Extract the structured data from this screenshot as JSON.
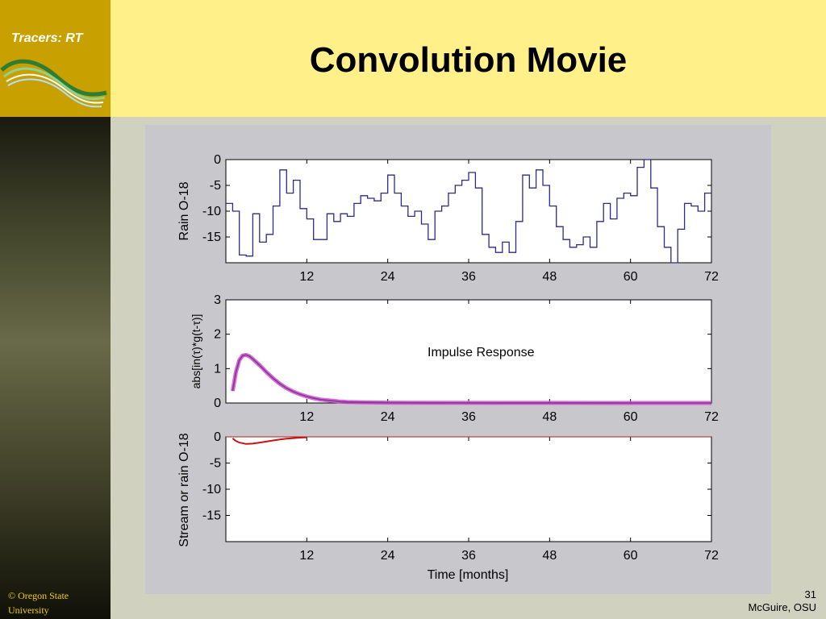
{
  "slide": {
    "course_label": "Tracers: RT",
    "title": "Convolution Movie",
    "footer_left": "© Oregon State University",
    "slide_number": "31",
    "author": "McGuire, OSU"
  },
  "colors": {
    "rain_line": "#2b2b8a",
    "impulse_highlight": "#e040e0",
    "impulse_line": "#6a4a7a",
    "stream_line": "#cc1111",
    "stream_dark": "#6a5a5a",
    "stream_zero_line": "#b02020"
  },
  "chart_data": [
    {
      "type": "line",
      "ylabel": "Rain O-18",
      "xlim": [
        0,
        72
      ],
      "ylim": [
        -20,
        0
      ],
      "xticks": [
        12,
        24,
        36,
        48,
        60,
        72
      ],
      "yticks": [
        0,
        -5,
        -10,
        -15
      ],
      "series": [
        {
          "style": "step",
          "x": [
            0,
            1,
            2,
            3,
            4,
            5,
            6,
            7,
            8,
            9,
            10,
            11,
            12,
            13,
            14,
            15,
            16,
            17,
            18,
            19,
            20,
            21,
            22,
            23,
            24,
            25,
            26,
            27,
            28,
            29,
            30,
            31,
            32,
            33,
            34,
            35,
            36,
            37,
            38,
            39,
            40,
            41,
            42,
            43,
            44,
            45,
            46,
            47,
            48,
            49,
            50,
            51,
            52,
            53,
            54,
            55,
            56,
            57,
            58,
            59,
            60,
            61,
            62,
            63,
            64,
            65,
            66,
            67,
            68,
            69,
            70,
            71
          ],
          "y": [
            -8.5,
            -10,
            -18.5,
            -18.7,
            -10.5,
            -16,
            -14.5,
            -9,
            -2,
            -6.5,
            -4,
            -9.5,
            -11.5,
            -15.5,
            -15.5,
            -10.5,
            -12,
            -10.5,
            -11,
            -8.5,
            -7,
            -7.5,
            -8,
            -6.5,
            -3,
            -6.5,
            -9,
            -11,
            -10,
            -12.5,
            -15.5,
            -10,
            -9,
            -6.5,
            -5,
            -4,
            -2.5,
            -5.5,
            -14.5,
            -17,
            -18,
            -16,
            -18,
            -12,
            -3,
            -5.5,
            -2,
            -5,
            -9,
            -13,
            -15.5,
            -17,
            -16.5,
            -15,
            -17,
            -12,
            -8.5,
            -11.5,
            -7.5,
            -6.5,
            -7,
            -1.5,
            0,
            -5.5,
            -13,
            -17,
            -20,
            -13.5,
            -8.5,
            -9,
            -10,
            -6.5
          ]
        }
      ]
    },
    {
      "type": "line",
      "ylabel": "abs[in(τ)*g(t-τ)]",
      "annotation": "Impulse Response",
      "xlim": [
        0,
        72
      ],
      "ylim": [
        0,
        3
      ],
      "xticks": [
        12,
        24,
        36,
        48,
        60,
        72
      ],
      "yticks": [
        0,
        1,
        2,
        3
      ],
      "series": [
        {
          "x": [
            1,
            1.5,
            2,
            2.5,
            3,
            3.5,
            4,
            5,
            6,
            7,
            8,
            9,
            10,
            11,
            12,
            13,
            14,
            15,
            16,
            17,
            18,
            20,
            24,
            30,
            40,
            50,
            60,
            72
          ],
          "y": [
            0.35,
            0.9,
            1.25,
            1.38,
            1.4,
            1.36,
            1.28,
            1.1,
            0.9,
            0.72,
            0.56,
            0.43,
            0.33,
            0.25,
            0.19,
            0.14,
            0.1,
            0.08,
            0.06,
            0.04,
            0.03,
            0.02,
            0.01,
            0.005,
            0.003,
            0.002,
            0.001,
            0.001
          ]
        }
      ]
    },
    {
      "type": "line",
      "ylabel": "Stream or rain O-18",
      "xlabel": "Time [months]",
      "xlim": [
        0,
        72
      ],
      "ylim": [
        -20,
        0
      ],
      "xticks": [
        12,
        24,
        36,
        48,
        60,
        72
      ],
      "yticks": [
        0,
        -5,
        -10,
        -15
      ],
      "series": [
        {
          "x": [
            1,
            1.5,
            2,
            3,
            4,
            5,
            6,
            7,
            8,
            9,
            10,
            11,
            12
          ],
          "y": [
            -0.3,
            -0.8,
            -1.1,
            -1.35,
            -1.3,
            -1.1,
            -0.9,
            -0.7,
            -0.5,
            -0.35,
            -0.25,
            -0.15,
            -0.1
          ]
        }
      ]
    }
  ]
}
